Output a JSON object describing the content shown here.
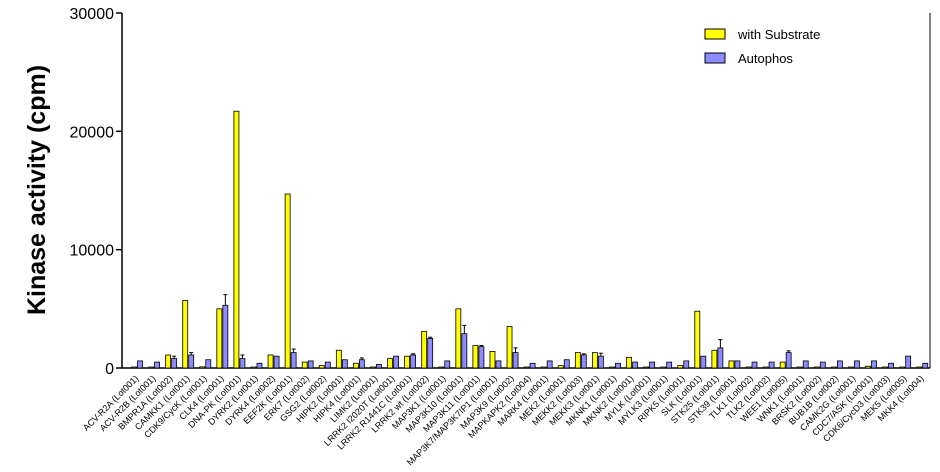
{
  "chart_data": {
    "type": "bar",
    "title": "",
    "xlabel": "",
    "ylabel": "Kinase activity  (cpm)",
    "ylim": [
      0,
      30000
    ],
    "yticks": [
      0,
      10000,
      20000,
      30000
    ],
    "grid": false,
    "legend_position": "top-right",
    "colors": {
      "with Substrate": "#ffff00",
      "Autophos": "#8c8cff"
    },
    "categories": [
      "ACV-R2A (Lot001)",
      "ACV-R2B (Lot001)",
      "BMPR1A (Lot002)",
      "CAMKK1 (Lot001)",
      "CDK9/CycK (Lot001)",
      "CLK4 (Lot001)",
      "DNA-PK (Lot001)",
      "DYRK2 (Lot001)",
      "DYRK4 (Lot002)",
      "EEF2K (Lot001)",
      "ERK7 (Lot002)",
      "GSG2 (Lot002)",
      "HIPK2 (Lot001)",
      "HIPK4 (Lot001)",
      "LIMK2 (Lot001)",
      "LRRK2 I2020T (Lot001)",
      "LRRK2 R1441C (Lot001)",
      "LRRK2 wt (Lot002)",
      "MAP3K1 (Lot001)",
      "MAP3K10 (Lot001)",
      "MAP3K11 (Lot001)",
      "MAP3K7/MAP3K7IP1 (Lot001)",
      "MAP3K9 (Lot002)",
      "MAPKAPK2 (Lot004)",
      "MARK4 (Lot001)",
      "MEK2 (Lot001)",
      "MEKK2 (Lot003)",
      "MEKK3 (Lot001)",
      "MKNK1 (Lot001)",
      "MKNK2 (Lot001)",
      "MYLK (Lot001)",
      "MYLK3 (Lot001)",
      "RIPK5 (Lot001)",
      "SLK (Lot001)",
      "STK25 (Lot001)",
      "STK39 (Lot001)",
      "TLK1 (Lot002)",
      "TLK2 (Lot002)",
      "WEE1 (Lot005)",
      "WNK1 (Lot001)",
      "BRSK2 (Lot002)",
      "BUB1B (Lot002)",
      "CAMK2G (Lot001)",
      "CDC7/ASK (Lot001)",
      "CDK6/CycD3 (Lot003)",
      "MEK5 (Lot005)",
      "MKK4 (Lot004)"
    ],
    "series": [
      {
        "name": "with Substrate",
        "values": [
          0,
          0,
          1100,
          5700,
          100,
          5000,
          21700,
          0,
          1100,
          14700,
          500,
          200,
          1500,
          400,
          0,
          800,
          1000,
          3100,
          0,
          5000,
          1900,
          1400,
          3500,
          0,
          0,
          200,
          1300,
          1300,
          0,
          900,
          0,
          0,
          200,
          4800,
          1500,
          600,
          0,
          0,
          500,
          0,
          0,
          0,
          0,
          150,
          0,
          50,
          50
        ],
        "errors": [
          0,
          0,
          0,
          0,
          0,
          0,
          0,
          0,
          0,
          0,
          0,
          0,
          0,
          0,
          0,
          0,
          0,
          0,
          0,
          0,
          0,
          0,
          0,
          0,
          0,
          0,
          0,
          0,
          0,
          0,
          0,
          0,
          0,
          0,
          0,
          0,
          0,
          0,
          0,
          0,
          0,
          0,
          0,
          0,
          0,
          0,
          0
        ]
      },
      {
        "name": "Autophos",
        "values": [
          600,
          500,
          800,
          1100,
          700,
          5300,
          800,
          400,
          1000,
          1300,
          600,
          500,
          700,
          700,
          300,
          1000,
          1100,
          2500,
          600,
          2900,
          1800,
          600,
          1300,
          400,
          600,
          700,
          1100,
          1000,
          400,
          500,
          500,
          500,
          600,
          1000,
          1700,
          600,
          500,
          500,
          1300,
          600,
          500,
          600,
          600,
          600,
          400,
          1000,
          400
        ],
        "errors": [
          50,
          50,
          200,
          200,
          50,
          900,
          300,
          50,
          50,
          300,
          50,
          50,
          50,
          150,
          50,
          50,
          100,
          100,
          50,
          700,
          100,
          50,
          400,
          50,
          50,
          50,
          100,
          250,
          50,
          50,
          50,
          50,
          50,
          50,
          700,
          50,
          50,
          50,
          150,
          50,
          50,
          50,
          50,
          50,
          50,
          50,
          50
        ]
      }
    ]
  }
}
